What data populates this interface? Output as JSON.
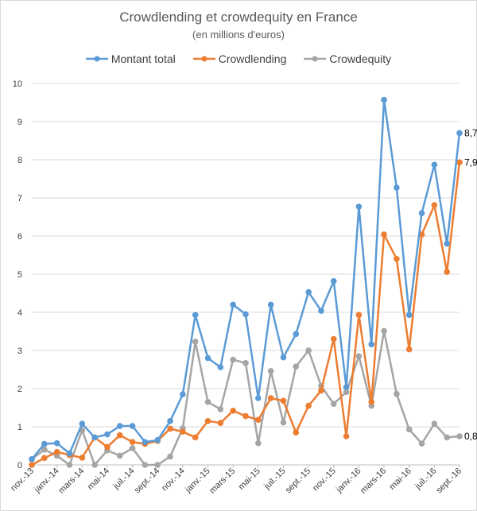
{
  "chart_data": {
    "type": "line",
    "title": "Crowdlending et crowdequity en France",
    "subtitle": "(en millions d'euros)",
    "categories": [
      "nov.-13",
      "déc.-13",
      "janv.-14",
      "févr.-14",
      "mars-14",
      "avr.-14",
      "mai-14",
      "juin-14",
      "juil.-14",
      "août-14",
      "sept.-14",
      "oct.-14",
      "nov.-14",
      "déc.-14",
      "janv.-15",
      "févr.-15",
      "mars-15",
      "avr.-15",
      "mai-15",
      "juin-15",
      "juil.-15",
      "août-15",
      "sept.-15",
      "oct.-15",
      "nov.-15",
      "déc.-15",
      "janv.-16",
      "févr.-16",
      "mars-16",
      "avr.-16",
      "mai-16",
      "juin-16",
      "juil.-16",
      "août-16",
      "sept.-16"
    ],
    "x_tick_labels": [
      "nov.-13",
      "janv.-14",
      "mars-14",
      "mai-14",
      "juil.-14",
      "sept.-14",
      "nov.-14",
      "janv.-15",
      "mars-15",
      "mai-15",
      "juil.-15",
      "sept.-15",
      "nov.-15",
      "janv.-16",
      "mars-16",
      "mai-16",
      "juil.-16",
      "sept.-16"
    ],
    "y_tick_labels": [
      "0",
      "1",
      "2",
      "3",
      "4",
      "5",
      "6",
      "7",
      "8",
      "9",
      "10"
    ],
    "ylim": [
      0,
      10
    ],
    "grid": true,
    "legend_position": "top",
    "series": [
      {
        "name": "Montant total",
        "color": "#5b9bd5",
        "values": [
          0.15,
          0.55,
          0.57,
          0.3,
          1.08,
          0.72,
          0.8,
          1.02,
          1.02,
          0.6,
          0.65,
          1.15,
          1.85,
          3.93,
          2.8,
          2.56,
          4.2,
          3.95,
          1.75,
          4.2,
          2.82,
          3.43,
          4.53,
          4.04,
          4.82,
          2.04,
          6.77,
          3.16,
          9.57,
          7.27,
          3.93,
          6.6,
          7.87,
          5.8,
          8.7
        ]
      },
      {
        "name": "Crowdlending",
        "color": "#ed7d31",
        "values": [
          0.0,
          0.18,
          0.34,
          0.26,
          0.19,
          0.72,
          0.47,
          0.78,
          0.6,
          0.55,
          0.63,
          0.95,
          0.87,
          0.72,
          1.15,
          1.1,
          1.42,
          1.28,
          1.18,
          1.75,
          1.68,
          0.85,
          1.55,
          1.95,
          3.3,
          0.75,
          3.93,
          1.65,
          6.04,
          5.4,
          3.03,
          6.04,
          6.81,
          5.06,
          7.93
        ]
      },
      {
        "name": "Crowdequity",
        "color": "#a5a5a5",
        "values": [
          0.15,
          0.4,
          0.24,
          0.0,
          0.91,
          0.0,
          0.38,
          0.24,
          0.44,
          0.0,
          0.0,
          0.22,
          0.96,
          3.23,
          1.65,
          1.46,
          2.76,
          2.67,
          0.57,
          2.46,
          1.11,
          2.58,
          3.0,
          2.07,
          1.6,
          1.91,
          2.85,
          1.55,
          3.51,
          1.86,
          0.93,
          0.56,
          1.08,
          0.72,
          0.75
        ]
      }
    ],
    "data_labels": [
      {
        "series": "Montant total",
        "index": 34,
        "text": "8,7"
      },
      {
        "series": "Crowdlending",
        "index": 34,
        "text": "7,9"
      },
      {
        "series": "Crowdequity",
        "index": 34,
        "text": "0,8"
      }
    ]
  }
}
